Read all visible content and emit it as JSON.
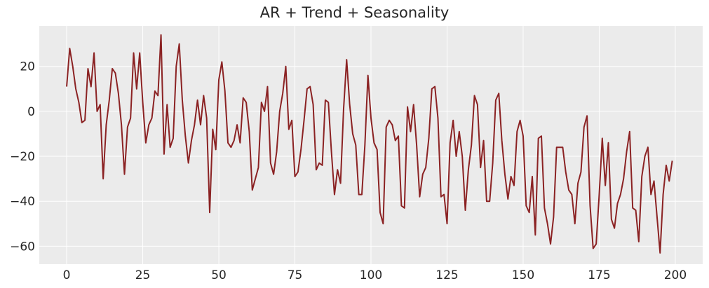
{
  "chart_data": {
    "type": "line",
    "title": "AR + Trend + Seasonality",
    "xlabel": "",
    "ylabel": "",
    "xlim": [
      -9,
      209
    ],
    "ylim": [
      -68,
      38
    ],
    "xticks": [
      0,
      25,
      50,
      75,
      100,
      125,
      150,
      175,
      200
    ],
    "yticks": [
      -60,
      -40,
      -20,
      0,
      20
    ],
    "grid": true,
    "background": "#ebebeb",
    "colors": {
      "line": "#8b2223",
      "grid": "#ffffff",
      "text": "#262626"
    },
    "series": [
      {
        "name": "",
        "x": [
          0,
          1,
          2,
          3,
          4,
          5,
          6,
          7,
          8,
          9,
          10,
          11,
          12,
          13,
          14,
          15,
          16,
          17,
          18,
          19,
          20,
          21,
          22,
          23,
          24,
          25,
          26,
          27,
          28,
          29,
          30,
          31,
          32,
          33,
          34,
          35,
          36,
          37,
          38,
          39,
          40,
          41,
          42,
          43,
          44,
          45,
          46,
          47,
          48,
          49,
          50,
          51,
          52,
          53,
          54,
          55,
          56,
          57,
          58,
          59,
          60,
          61,
          62,
          63,
          64,
          65,
          66,
          67,
          68,
          69,
          70,
          71,
          72,
          73,
          74,
          75,
          76,
          77,
          78,
          79,
          80,
          81,
          82,
          83,
          84,
          85,
          86,
          87,
          88,
          89,
          90,
          91,
          92,
          93,
          94,
          95,
          96,
          97,
          98,
          99,
          100,
          101,
          102,
          103,
          104,
          105,
          106,
          107,
          108,
          109,
          110,
          111,
          112,
          113,
          114,
          115,
          116,
          117,
          118,
          119,
          120,
          121,
          122,
          123,
          124,
          125,
          126,
          127,
          128,
          129,
          130,
          131,
          132,
          133,
          134,
          135,
          136,
          137,
          138,
          139,
          140,
          141,
          142,
          143,
          144,
          145,
          146,
          147,
          148,
          149,
          150,
          151,
          152,
          153,
          154,
          155,
          156,
          157,
          158,
          159,
          160,
          161,
          162,
          163,
          164,
          165,
          166,
          167,
          168,
          169,
          170,
          171,
          172,
          173,
          174,
          175,
          176,
          177,
          178,
          179,
          180,
          181,
          182,
          183,
          184,
          185,
          186,
          187,
          188,
          189,
          190,
          191,
          192,
          193,
          194,
          195,
          196,
          197,
          198,
          199
        ],
        "values": [
          11,
          28,
          20,
          10,
          4,
          -5,
          -4,
          19,
          11,
          26,
          0,
          3,
          -30,
          -6,
          5,
          19,
          17,
          8,
          -6,
          -28,
          -7,
          -3,
          26,
          10,
          26,
          4,
          -14,
          -6,
          -3,
          9,
          7,
          34,
          -19,
          3,
          -16,
          -12,
          20,
          30,
          5,
          -11,
          -23,
          -13,
          -6,
          5,
          -6,
          7,
          -3,
          -45,
          -8,
          -17,
          14,
          22,
          9,
          -14,
          -16,
          -13,
          -6,
          -14,
          6,
          4,
          -9,
          -35,
          -30,
          -25,
          4,
          0,
          11,
          -23,
          -28,
          -18,
          0,
          8,
          20,
          -8,
          -4,
          -29,
          -27,
          -17,
          -4,
          10,
          11,
          3,
          -26,
          -23,
          -24,
          5,
          4,
          -18,
          -37,
          -26,
          -32,
          1,
          23,
          3,
          -10,
          -15,
          -37,
          -37,
          -15,
          16,
          -3,
          -14,
          -17,
          -45,
          -50,
          -7,
          -4,
          -6,
          -13,
          -11,
          -42,
          -43,
          2,
          -9,
          3,
          -15,
          -38,
          -28,
          -25,
          -12,
          10,
          11,
          -3,
          -38,
          -37,
          -50,
          -14,
          -4,
          -20,
          -9,
          -20,
          -44,
          -26,
          -15,
          7,
          3,
          -25,
          -13,
          -40,
          -40,
          -23,
          5,
          8,
          -13,
          -28,
          -39,
          -29,
          -33,
          -9,
          -4,
          -11,
          -42,
          -45,
          -29,
          -55,
          -12,
          -11,
          -43,
          -50,
          -59,
          -47,
          -16,
          -16,
          -16,
          -27,
          -35,
          -37,
          -50,
          -32,
          -27,
          -7,
          -2,
          -42,
          -61,
          -59,
          -37,
          -12,
          -33,
          -14,
          -48,
          -52,
          -41,
          -37,
          -30,
          -18,
          -9,
          -43,
          -44,
          -58,
          -29,
          -20,
          -16,
          -37,
          -31,
          -47,
          -63,
          -37,
          -24,
          -31,
          -22
        ]
      }
    ]
  }
}
